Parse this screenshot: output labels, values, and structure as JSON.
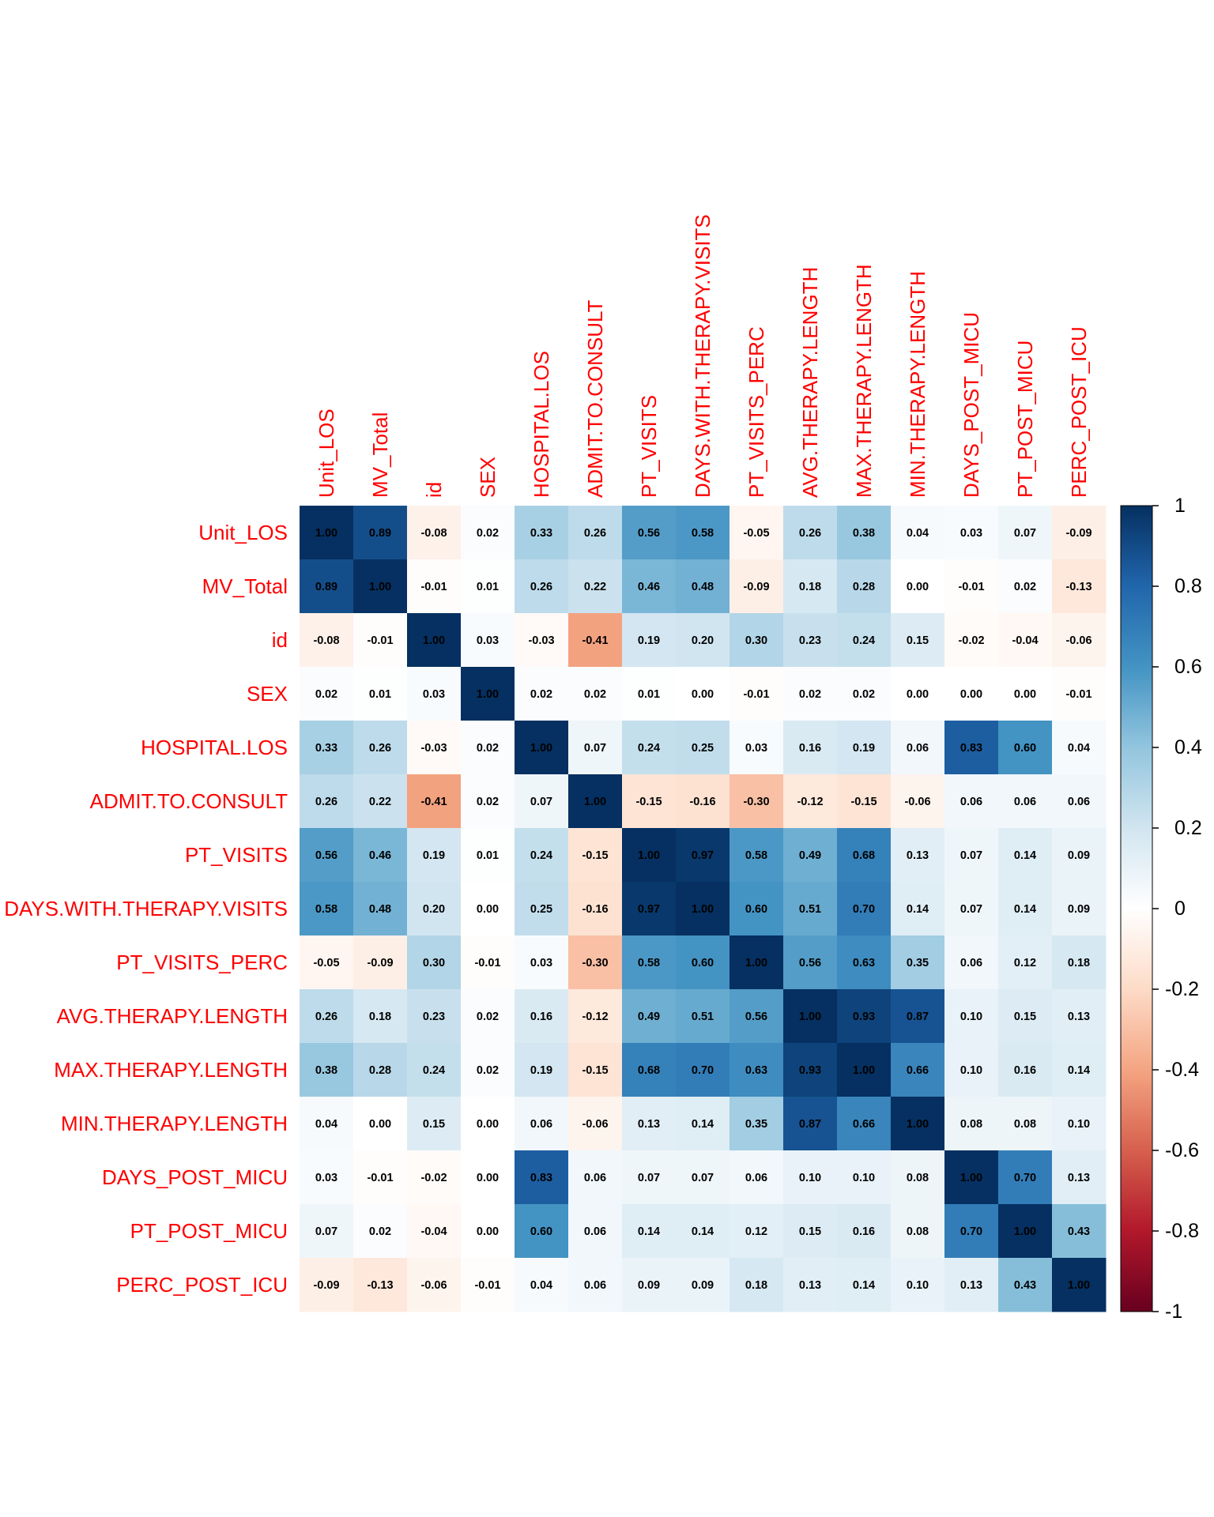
{
  "chart_data": {
    "type": "heatmap",
    "title": "",
    "labels": [
      "Unit_LOS",
      "MV_Total",
      "id",
      "SEX",
      "HOSPITAL.LOS",
      "ADMIT.TO.CONSULT",
      "PT_VISITS",
      "DAYS.WITH.THERAPY.VISITS",
      "PT_VISITS_PERC",
      "AVG.THERAPY.LENGTH",
      "MAX.THERAPY.LENGTH",
      "MIN.THERAPY.LENGTH",
      "DAYS_POST_MICU",
      "PT_POST_MICU",
      "PERC_POST_ICU"
    ],
    "matrix": [
      [
        "1.00",
        "0.89",
        "-0.08",
        "0.02",
        "0.33",
        "0.26",
        "0.56",
        "0.58",
        "-0.05",
        "0.26",
        "0.38",
        "0.04",
        "0.03",
        "0.07",
        "-0.09"
      ],
      [
        "0.89",
        "1.00",
        "-0.01",
        "0.01",
        "0.26",
        "0.22",
        "0.46",
        "0.48",
        "-0.09",
        "0.18",
        "0.28",
        "0.00",
        "-0.01",
        "0.02",
        "-0.13"
      ],
      [
        "-0.08",
        "-0.01",
        "1.00",
        "0.03",
        "-0.03",
        "-0.41",
        "0.19",
        "0.20",
        "0.30",
        "0.23",
        "0.24",
        "0.15",
        "-0.02",
        "-0.04",
        "-0.06"
      ],
      [
        "0.02",
        "0.01",
        "0.03",
        "1.00",
        "0.02",
        "0.02",
        "0.01",
        "0.00",
        "-0.01",
        "0.02",
        "0.02",
        "0.00",
        "0.00",
        "0.00",
        "-0.01"
      ],
      [
        "0.33",
        "0.26",
        "-0.03",
        "0.02",
        "1.00",
        "0.07",
        "0.24",
        "0.25",
        "0.03",
        "0.16",
        "0.19",
        "0.06",
        "0.83",
        "0.60",
        "0.04"
      ],
      [
        "0.26",
        "0.22",
        "-0.41",
        "0.02",
        "0.07",
        "1.00",
        "-0.15",
        "-0.16",
        "-0.30",
        "-0.12",
        "-0.15",
        "-0.06",
        "0.06",
        "0.06",
        "0.06"
      ],
      [
        "0.56",
        "0.46",
        "0.19",
        "0.01",
        "0.24",
        "-0.15",
        "1.00",
        "0.97",
        "0.58",
        "0.49",
        "0.68",
        "0.13",
        "0.07",
        "0.14",
        "0.09"
      ],
      [
        "0.58",
        "0.48",
        "0.20",
        "0.00",
        "0.25",
        "-0.16",
        "0.97",
        "1.00",
        "0.60",
        "0.51",
        "0.70",
        "0.14",
        "0.07",
        "0.14",
        "0.09"
      ],
      [
        "-0.05",
        "-0.09",
        "0.30",
        "-0.01",
        "0.03",
        "-0.30",
        "0.58",
        "0.60",
        "1.00",
        "0.56",
        "0.63",
        "0.35",
        "0.06",
        "0.12",
        "0.18"
      ],
      [
        "0.26",
        "0.18",
        "0.23",
        "0.02",
        "0.16",
        "-0.12",
        "0.49",
        "0.51",
        "0.56",
        "1.00",
        "0.93",
        "0.87",
        "0.10",
        "0.15",
        "0.13"
      ],
      [
        "0.38",
        "0.28",
        "0.24",
        "0.02",
        "0.19",
        "-0.15",
        "0.68",
        "0.70",
        "0.63",
        "0.93",
        "1.00",
        "0.66",
        "0.10",
        "0.16",
        "0.14"
      ],
      [
        "0.04",
        "0.00",
        "0.15",
        "0.00",
        "0.06",
        "-0.06",
        "0.13",
        "0.14",
        "0.35",
        "0.87",
        "0.66",
        "1.00",
        "0.08",
        "0.08",
        "0.10"
      ],
      [
        "0.03",
        "-0.01",
        "-0.02",
        "0.00",
        "0.83",
        "0.06",
        "0.07",
        "0.07",
        "0.06",
        "0.10",
        "0.10",
        "0.08",
        "1.00",
        "0.70",
        "0.13"
      ],
      [
        "0.07",
        "0.02",
        "-0.04",
        "0.00",
        "0.60",
        "0.06",
        "0.14",
        "0.14",
        "0.12",
        "0.15",
        "0.16",
        "0.08",
        "0.70",
        "1.00",
        "0.43"
      ],
      [
        "-0.09",
        "-0.13",
        "-0.06",
        "-0.01",
        "0.04",
        "0.06",
        "0.09",
        "0.09",
        "0.18",
        "0.13",
        "0.14",
        "0.10",
        "0.13",
        "0.43",
        "1.00"
      ]
    ],
    "colorbar": {
      "range": [
        -1,
        1
      ],
      "ticks": [
        "1",
        "0.8",
        "0.6",
        "0.4",
        "0.2",
        "0",
        "-0.2",
        "-0.4",
        "-0.6",
        "-0.8",
        "-1"
      ]
    },
    "colors": {
      "label": "#ff0000",
      "scale": [
        "#67001f",
        "#b2182b",
        "#d6604d",
        "#f4a582",
        "#fddbc7",
        "#ffffff",
        "#d1e5f0",
        "#92c5de",
        "#4393c3",
        "#2166ac",
        "#053061"
      ]
    }
  }
}
